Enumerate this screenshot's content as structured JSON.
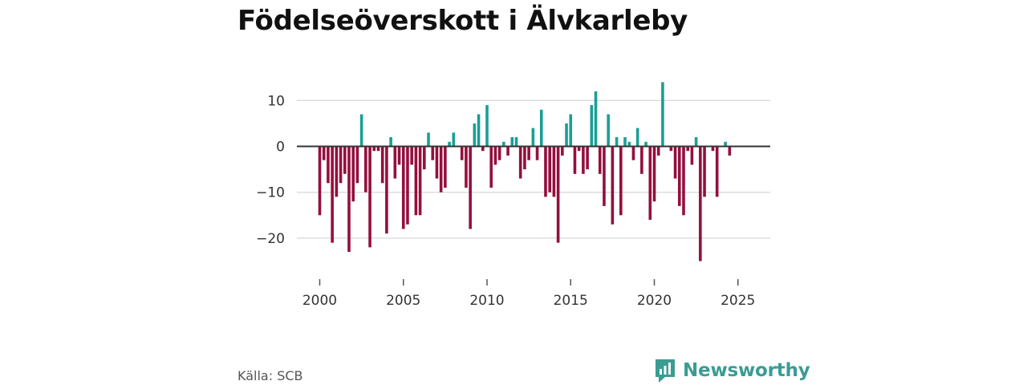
{
  "title": "Födelseöverskott i Älvkarleby",
  "source": "Källa: SCB",
  "brand": {
    "name": "Newsworthy",
    "icon": "bar-chart-logo-icon"
  },
  "colors": {
    "positive": "#1a9e96",
    "negative": "#940f3e",
    "grid": "#dddddd",
    "zero_line": "#333333",
    "text": "#333333"
  },
  "chart_data": {
    "type": "bar",
    "title": "Födelseöverskott i Älvkarleby",
    "xlabel": "",
    "ylabel": "",
    "x_start": 2000,
    "x_step": 0.25,
    "x_ticks": [
      2000,
      2005,
      2010,
      2015,
      2020,
      2025
    ],
    "x_tick_labels": [
      "2000",
      "2005",
      "2010",
      "2015",
      "2020",
      "2025"
    ],
    "y_ticks": [
      10,
      0,
      -10,
      -20
    ],
    "y_tick_labels": [
      "10",
      "0",
      "−10",
      "−20"
    ],
    "ylim": [
      -27,
      17
    ],
    "values": [
      -15,
      -3,
      -8,
      -21,
      -11,
      -8,
      -6,
      -23,
      -12,
      -8,
      7,
      -10,
      -22,
      -1,
      -1,
      -8,
      -19,
      2,
      -7,
      -4,
      -18,
      -17,
      -4,
      -15,
      -15,
      -5,
      3,
      -3,
      -7,
      -10,
      -9,
      1,
      3,
      0,
      -3,
      -9,
      -18,
      5,
      7,
      -1,
      9,
      -9,
      -4,
      -3,
      1,
      -2,
      2,
      2,
      -7,
      -5,
      -3,
      4,
      -3,
      8,
      -11,
      -10,
      -11,
      -21,
      -2,
      5,
      7,
      -6,
      -1,
      -6,
      -5,
      9,
      12,
      -6,
      -13,
      7,
      -17,
      2,
      -15,
      2,
      1,
      -3,
      4,
      -6,
      1,
      -16,
      -12,
      -2,
      14,
      0,
      -1,
      -7,
      -13,
      -15,
      -1,
      -4,
      2,
      -25,
      -11,
      0,
      -1,
      -11,
      0,
      1,
      -2
    ]
  }
}
